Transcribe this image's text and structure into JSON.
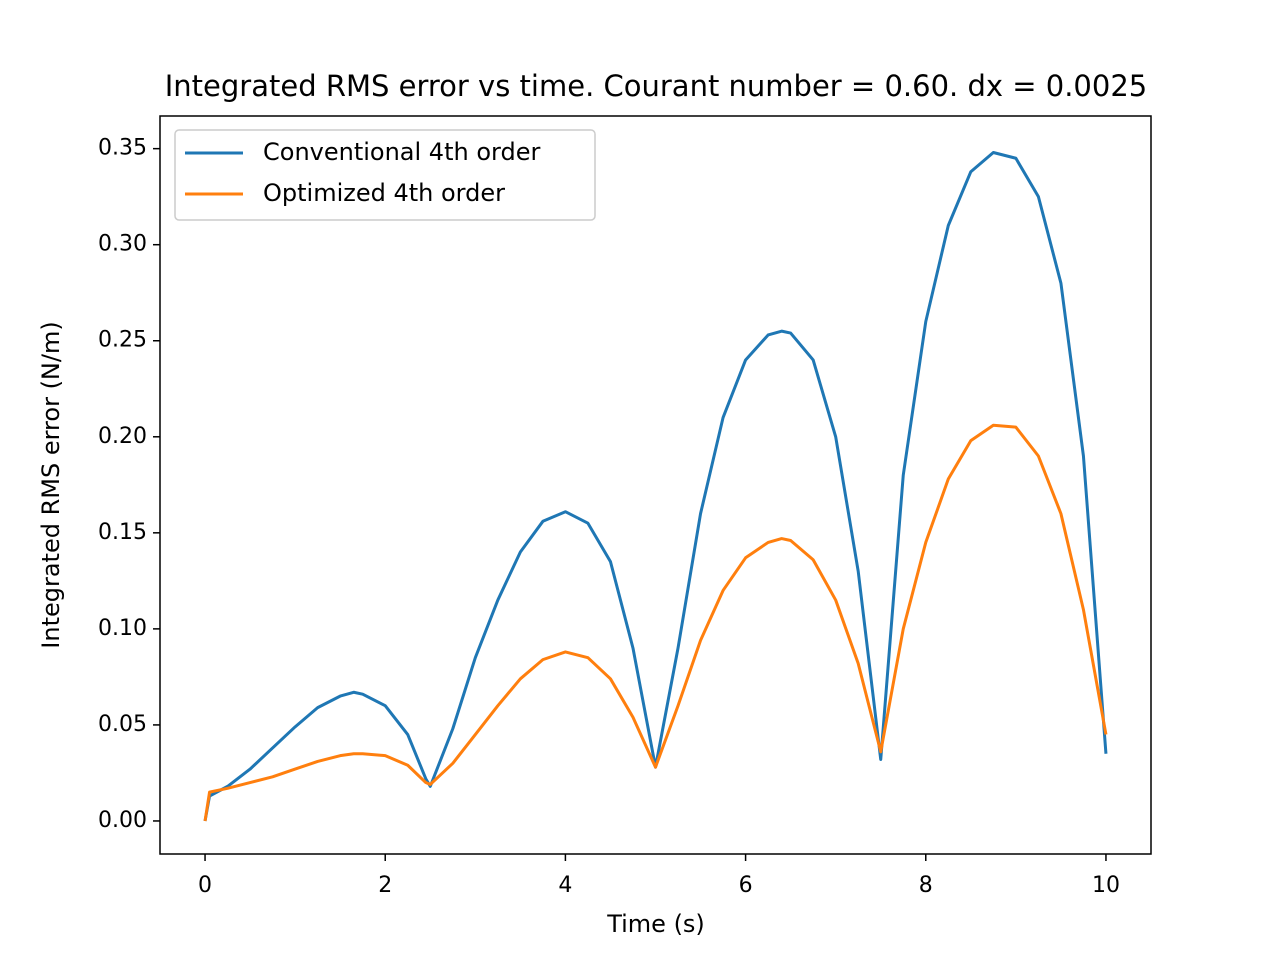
{
  "chart_data": {
    "type": "line",
    "title": "Integrated RMS error vs time. Courant number = 0.60. dx = 0.0025",
    "xlabel": "Time (s)",
    "ylabel": "Integrated RMS error (N/m)",
    "x": [
      0,
      0.05,
      0.25,
      0.5,
      0.75,
      1,
      1.25,
      1.5,
      1.65,
      1.75,
      2,
      2.25,
      2.45,
      2.5,
      2.75,
      3,
      3.25,
      3.5,
      3.75,
      4,
      4.25,
      4.5,
      4.75,
      5,
      5.25,
      5.5,
      5.75,
      6,
      6.25,
      6.4,
      6.5,
      6.75,
      7,
      7.25,
      7.5,
      7.75,
      8,
      8.25,
      8.5,
      8.75,
      9,
      9.25,
      9.5,
      9.75,
      10
    ],
    "series": [
      {
        "name": "Conventional 4th order",
        "color": "#1f77b4",
        "values": [
          0,
          0.013,
          0.018,
          0.027,
          0.038,
          0.049,
          0.059,
          0.065,
          0.067,
          0.066,
          0.06,
          0.045,
          0.022,
          0.018,
          0.048,
          0.085,
          0.115,
          0.14,
          0.156,
          0.161,
          0.155,
          0.135,
          0.09,
          0.028,
          0.09,
          0.16,
          0.21,
          0.24,
          0.253,
          0.255,
          0.254,
          0.24,
          0.2,
          0.13,
          0.032,
          0.18,
          0.26,
          0.31,
          0.338,
          0.348,
          0.345,
          0.325,
          0.28,
          0.19,
          0.035
        ]
      },
      {
        "name": "Optimized 4th order",
        "color": "#ff7f0e",
        "values": [
          0,
          0.015,
          0.017,
          0.02,
          0.023,
          0.027,
          0.031,
          0.034,
          0.035,
          0.035,
          0.034,
          0.029,
          0.02,
          0.019,
          0.03,
          0.045,
          0.06,
          0.074,
          0.084,
          0.088,
          0.085,
          0.074,
          0.054,
          0.028,
          0.06,
          0.094,
          0.12,
          0.137,
          0.145,
          0.147,
          0.146,
          0.136,
          0.115,
          0.082,
          0.036,
          0.1,
          0.145,
          0.178,
          0.198,
          0.206,
          0.205,
          0.19,
          0.16,
          0.11,
          0.045
        ]
      }
    ],
    "xlim": [
      -0.5,
      10.5
    ],
    "ylim": [
      -0.0172,
      0.367
    ],
    "xticks": [
      0,
      2,
      4,
      6,
      8,
      10
    ],
    "yticks": [
      {
        "value": 0,
        "label": "0.00"
      },
      {
        "value": 0.05,
        "label": "0.05"
      },
      {
        "value": 0.1,
        "label": "0.10"
      },
      {
        "value": 0.15,
        "label": "0.15"
      },
      {
        "value": 0.2,
        "label": "0.20"
      },
      {
        "value": 0.25,
        "label": "0.25"
      },
      {
        "value": 0.3,
        "label": "0.30"
      },
      {
        "value": 0.35,
        "label": "0.35"
      }
    ],
    "legend": "upper left",
    "grid": false
  }
}
